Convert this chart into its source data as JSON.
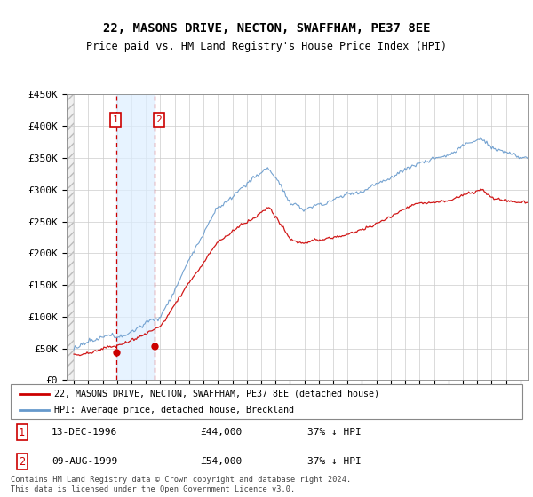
{
  "title": "22, MASONS DRIVE, NECTON, SWAFFHAM, PE37 8EE",
  "subtitle": "Price paid vs. HM Land Registry's House Price Index (HPI)",
  "legend_line1": "22, MASONS DRIVE, NECTON, SWAFFHAM, PE37 8EE (detached house)",
  "legend_line2": "HPI: Average price, detached house, Breckland",
  "footer": "Contains HM Land Registry data © Crown copyright and database right 2024.\nThis data is licensed under the Open Government Licence v3.0.",
  "sale1_date": "13-DEC-1996",
  "sale1_price": 44000,
  "sale1_hpi": "37% ↓ HPI",
  "sale2_date": "09-AUG-1999",
  "sale2_price": 54000,
  "sale2_hpi": "37% ↓ HPI",
  "sale1_x": 1996.96,
  "sale2_x": 1999.61,
  "red_color": "#cc0000",
  "blue_color": "#6699cc",
  "ylim": [
    0,
    450000
  ],
  "yticks": [
    0,
    50000,
    100000,
    150000,
    200000,
    250000,
    300000,
    350000,
    400000,
    450000
  ],
  "ytick_labels": [
    "£0",
    "£50K",
    "£100K",
    "£150K",
    "£200K",
    "£250K",
    "£300K",
    "£350K",
    "£400K",
    "£450K"
  ],
  "xlim_start": 1993.5,
  "xlim_end": 2025.5
}
